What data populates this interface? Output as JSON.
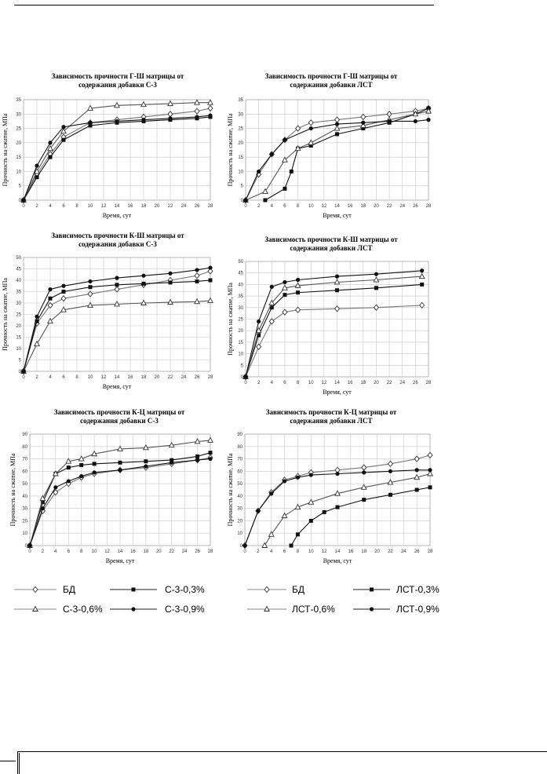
{
  "chart_data": [
    {
      "type": "line",
      "title": "Зависимость прочности Г-Ш матрицы от содержания добавки С-3",
      "xlabel": "Время, сут",
      "ylabel": "Прочность на сжатие, МПа",
      "xlim": [
        0,
        28
      ],
      "ylim": [
        0,
        35
      ],
      "xticks": [
        0,
        2,
        4,
        6,
        8,
        10,
        12,
        14,
        16,
        18,
        20,
        22,
        24,
        26,
        28
      ],
      "yticks": [
        0,
        5,
        10,
        15,
        20,
        25,
        30,
        35
      ],
      "grid": true,
      "series": [
        {
          "name": "БД",
          "marker": "diamond-open",
          "x": [
            0,
            2,
            4,
            6,
            10,
            14,
            18,
            22,
            26,
            28
          ],
          "y": [
            0,
            9,
            16,
            22,
            27,
            28,
            29,
            30,
            31,
            32
          ]
        },
        {
          "name": "С-3-0,3%",
          "marker": "square-filled",
          "x": [
            0,
            2,
            4,
            6,
            10,
            14,
            18,
            22,
            26,
            28
          ],
          "y": [
            0,
            8,
            15,
            21,
            26,
            27,
            27.5,
            28,
            28.5,
            29
          ]
        },
        {
          "name": "С-3-0,6%",
          "marker": "triangle-open",
          "x": [
            0,
            2,
            4,
            6,
            10,
            14,
            18,
            22,
            26,
            28
          ],
          "y": [
            0,
            10,
            18,
            24,
            32,
            33,
            33.3,
            33.6,
            34,
            34
          ]
        },
        {
          "name": "С-3-0,9%",
          "marker": "circle-filled",
          "x": [
            0,
            2,
            4,
            6,
            10,
            14,
            18,
            22,
            26,
            28
          ],
          "y": [
            0,
            12,
            20,
            25.5,
            27,
            27.5,
            28,
            28.5,
            29,
            29.5
          ]
        }
      ]
    },
    {
      "type": "line",
      "title": "Зависимость прочности Г-Ш матрицы от содержания добавки ЛСТ",
      "xlabel": "Время, сут",
      "ylabel": "Прочность на сжатие, МПа",
      "xlim": [
        0,
        28
      ],
      "ylim": [
        0,
        35
      ],
      "xticks": [
        0,
        2,
        4,
        6,
        8,
        10,
        12,
        14,
        16,
        18,
        20,
        22,
        24,
        26,
        28
      ],
      "yticks": [
        0,
        5,
        10,
        15,
        20,
        25,
        30,
        35
      ],
      "grid": true,
      "series": [
        {
          "name": "БД",
          "marker": "diamond-open",
          "x": [
            0,
            2,
            4,
            6,
            8,
            10,
            14,
            18,
            22,
            26,
            28
          ],
          "y": [
            0,
            9,
            16,
            21,
            25,
            27,
            28,
            29,
            30,
            31,
            32
          ]
        },
        {
          "name": "ЛСТ-0,3%",
          "marker": "square-filled",
          "x": [
            3,
            6,
            7,
            8,
            10,
            14,
            18,
            22,
            26,
            28
          ],
          "y": [
            0,
            4,
            10,
            18,
            19,
            23,
            25,
            27,
            30,
            32
          ]
        },
        {
          "name": "ЛСТ-0,6%",
          "marker": "triangle-open",
          "x": [
            0,
            3,
            6,
            8,
            10,
            14,
            18,
            22,
            26,
            28
          ],
          "y": [
            0,
            3,
            14,
            18,
            20,
            25,
            26,
            28,
            30,
            31
          ]
        },
        {
          "name": "ЛСТ-0,9%",
          "marker": "circle-filled",
          "x": [
            0,
            2,
            4,
            6,
            10,
            14,
            18,
            22,
            26,
            28
          ],
          "y": [
            0,
            10,
            16,
            21,
            25,
            26.5,
            27,
            27.5,
            27.5,
            28
          ]
        }
      ]
    },
    {
      "type": "line",
      "title": "Зависимость прочности К-Ш матрицы от содержания добавки С-3",
      "xlabel": "Время, сут",
      "ylabel": "Прочность на сжатие, МПа",
      "xlim": [
        0,
        28
      ],
      "ylim": [
        0,
        50
      ],
      "xticks": [
        0,
        2,
        4,
        6,
        8,
        10,
        12,
        14,
        16,
        18,
        20,
        22,
        24,
        26,
        28
      ],
      "yticks": [
        0,
        5,
        10,
        15,
        20,
        25,
        30,
        35,
        40,
        45,
        50
      ],
      "grid": true,
      "series": [
        {
          "name": "БД",
          "marker": "diamond-open",
          "x": [
            0,
            2,
            4,
            6,
            10,
            14,
            18,
            22,
            26,
            28
          ],
          "y": [
            0,
            21,
            29,
            32,
            34,
            36,
            38,
            40,
            42,
            44
          ]
        },
        {
          "name": "С-3-0,3%",
          "marker": "square-filled",
          "x": [
            0,
            2,
            4,
            6,
            10,
            14,
            18,
            22,
            26,
            28
          ],
          "y": [
            0,
            22,
            32,
            35,
            37,
            38,
            38.5,
            39,
            39.5,
            40
          ]
        },
        {
          "name": "С-3-0,6%",
          "marker": "triangle-open",
          "x": [
            0,
            2,
            4,
            6,
            10,
            14,
            18,
            22,
            26,
            28
          ],
          "y": [
            0,
            12,
            22,
            27,
            29,
            29.5,
            30,
            30.3,
            30.6,
            31
          ]
        },
        {
          "name": "С-3-0,9%",
          "marker": "circle-filled",
          "x": [
            0,
            2,
            4,
            6,
            10,
            14,
            18,
            22,
            26,
            28
          ],
          "y": [
            0,
            24,
            36,
            37.5,
            39.5,
            41,
            42,
            43,
            44.5,
            45.5
          ]
        }
      ]
    },
    {
      "type": "line",
      "title": "Зависимость прочности К-Ш матрицы от содержания добавки ЛСТ",
      "xlabel": "Время, сут",
      "ylabel": "Прочность на сжатие, МПа",
      "xlim": [
        0,
        28
      ],
      "ylim": [
        0,
        50
      ],
      "xticks": [
        0,
        2,
        4,
        6,
        8,
        10,
        12,
        14,
        16,
        18,
        20,
        22,
        24,
        26,
        28
      ],
      "yticks": [
        0,
        5,
        10,
        15,
        20,
        25,
        30,
        35,
        40,
        45,
        50
      ],
      "grid": true,
      "series": [
        {
          "name": "БД",
          "marker": "diamond-open",
          "x": [
            0,
            2,
            4,
            6,
            8,
            14,
            20,
            27
          ],
          "y": [
            0,
            13,
            24,
            28,
            29,
            29.5,
            30,
            31
          ]
        },
        {
          "name": "ЛСТ-0,3%",
          "marker": "square-filled",
          "x": [
            0,
            2,
            4,
            6,
            8,
            14,
            20,
            27
          ],
          "y": [
            0,
            18,
            30,
            35.5,
            36.5,
            37.5,
            38.5,
            40
          ]
        },
        {
          "name": "ЛСТ-0,6%",
          "marker": "triangle-open",
          "x": [
            0,
            2,
            4,
            6,
            8,
            14,
            20,
            27
          ],
          "y": [
            0,
            20,
            32,
            38.5,
            39.5,
            41,
            42,
            43.5
          ]
        },
        {
          "name": "ЛСТ-0,9%",
          "marker": "circle-filled",
          "x": [
            0,
            2,
            4,
            6,
            8,
            14,
            20,
            27
          ],
          "y": [
            0,
            24,
            39,
            41,
            42,
            43.5,
            44.5,
            46
          ]
        }
      ]
    },
    {
      "type": "line",
      "title": "Зависимость прочности К-Ц матрицы от содержания добавки С-3",
      "xlabel": "Время, сут",
      "ylabel": "Прочность на сжатие, МПа",
      "xlim": [
        0,
        28
      ],
      "ylim": [
        0,
        90
      ],
      "xticks": [
        0,
        2,
        4,
        6,
        8,
        10,
        12,
        14,
        16,
        18,
        20,
        22,
        24,
        26,
        28
      ],
      "yticks": [
        0,
        10,
        20,
        30,
        40,
        50,
        60,
        70,
        80,
        90
      ],
      "grid": true,
      "series": [
        {
          "name": "БД",
          "marker": "diamond-open",
          "x": [
            0,
            2,
            4,
            6,
            8,
            10,
            14,
            18,
            22,
            26,
            28
          ],
          "y": [
            0,
            28,
            43,
            50,
            55,
            58,
            61,
            63,
            66,
            69,
            71
          ]
        },
        {
          "name": "С-3-0,3%",
          "marker": "square-filled",
          "x": [
            0,
            2,
            4,
            6,
            8,
            10,
            14,
            18,
            22,
            26,
            28
          ],
          "y": [
            0,
            35,
            58,
            63,
            65,
            66,
            67,
            68,
            69,
            72,
            75
          ]
        },
        {
          "name": "С-3-0,6%",
          "marker": "triangle-open",
          "x": [
            0,
            2,
            4,
            6,
            8,
            10,
            14,
            18,
            22,
            26,
            28
          ],
          "y": [
            0,
            38,
            58,
            68,
            70,
            74,
            78,
            79,
            81,
            84,
            85
          ]
        },
        {
          "name": "С-3-0,9%",
          "marker": "circle-filled",
          "x": [
            0,
            2,
            4,
            6,
            8,
            10,
            14,
            18,
            22,
            26,
            28
          ],
          "y": [
            0,
            30,
            47,
            52,
            56,
            59,
            61,
            64,
            67,
            69,
            70
          ]
        }
      ]
    },
    {
      "type": "line",
      "title": "Зависимость прочности К-Ц матрицы от содержания добавки ЛСТ",
      "xlabel": "Время, сут",
      "ylabel": "Прочность на сжатие, МПа",
      "xlim": [
        0,
        28
      ],
      "ylim": [
        0,
        90
      ],
      "xticks": [
        0,
        2,
        4,
        6,
        8,
        10,
        12,
        14,
        16,
        18,
        20,
        22,
        24,
        26,
        28
      ],
      "yticks": [
        0,
        10,
        20,
        30,
        40,
        50,
        60,
        70,
        80,
        90
      ],
      "grid": true,
      "series": [
        {
          "name": "БД",
          "marker": "diamond-open",
          "x": [
            0,
            2,
            4,
            6,
            8,
            10,
            14,
            18,
            22,
            26,
            28
          ],
          "y": [
            0,
            28,
            43,
            53,
            56,
            59,
            61,
            63,
            66,
            70,
            73
          ]
        },
        {
          "name": "ЛСТ-0,3%",
          "marker": "square-filled",
          "x": [
            7,
            8,
            10,
            12,
            14,
            18,
            22,
            26,
            28
          ],
          "y": [
            0,
            9,
            20,
            27,
            31,
            37,
            41,
            45,
            47
          ]
        },
        {
          "name": "ЛСТ-0,6%",
          "marker": "triangle-open",
          "x": [
            3,
            4,
            6,
            8,
            10,
            14,
            18,
            22,
            26,
            28
          ],
          "y": [
            0,
            9,
            24,
            31,
            35,
            42,
            47,
            51,
            55,
            58
          ]
        },
        {
          "name": "ЛСТ-0,9%",
          "marker": "circle-filled",
          "x": [
            0,
            2,
            4,
            6,
            8,
            10,
            14,
            18,
            22,
            26,
            28
          ],
          "y": [
            0,
            28,
            42,
            52,
            55,
            57,
            58,
            59,
            60,
            61,
            61
          ]
        }
      ]
    }
  ],
  "legends": [
    {
      "items": [
        {
          "name": "БД",
          "marker": "diamond-open"
        },
        {
          "name": "С-3-0,3%",
          "marker": "square-filled"
        },
        {
          "name": "С-3-0,6%",
          "marker": "triangle-open"
        },
        {
          "name": "С-3-0,9%",
          "marker": "circle-filled"
        }
      ]
    },
    {
      "items": [
        {
          "name": "БД",
          "marker": "diamond-open"
        },
        {
          "name": "ЛСТ-0,3%",
          "marker": "square-filled"
        },
        {
          "name": "ЛСТ-0,6%",
          "marker": "triangle-open"
        },
        {
          "name": "ЛСТ-0,9%",
          "marker": "circle-filled"
        }
      ]
    }
  ]
}
